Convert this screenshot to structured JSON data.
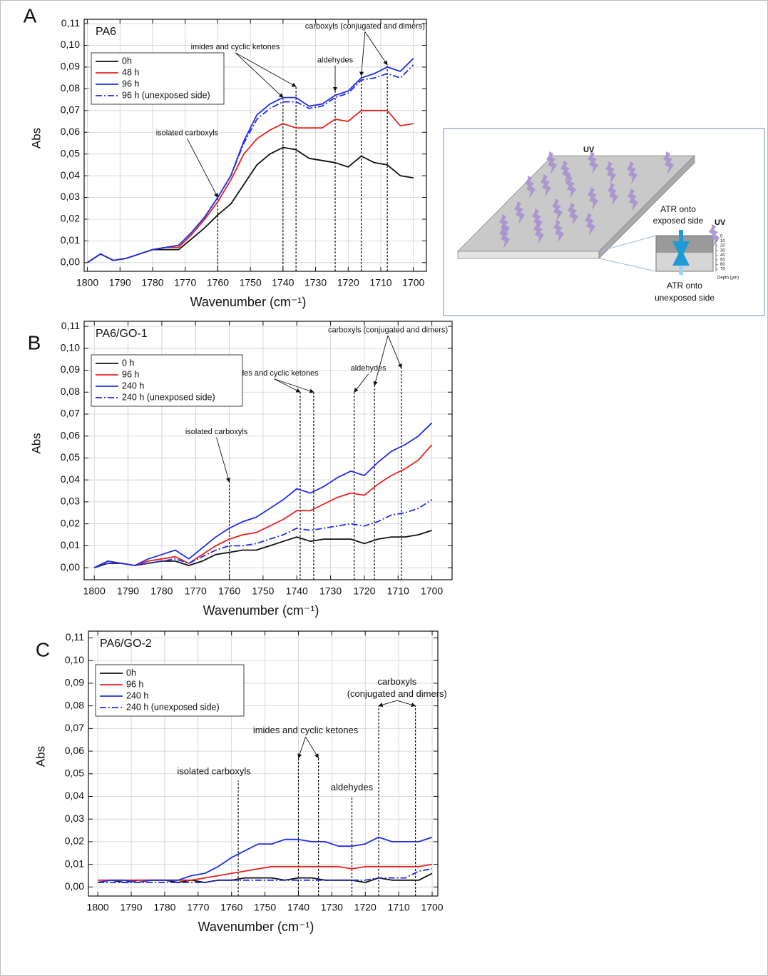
{
  "chart_data": [
    {
      "type": "line",
      "panel": "A",
      "title": "PA6",
      "xlabel": "Wavenumber (cm⁻¹)",
      "ylabel": "Abs",
      "xlim": [
        1801,
        1696
      ],
      "ylim": [
        -0.004,
        0.112
      ],
      "xticks": [
        1800,
        1790,
        1780,
        1770,
        1760,
        1750,
        1740,
        1730,
        1720,
        1710,
        1700
      ],
      "yticks": [
        {
          "value": 0,
          "label": "0,00"
        },
        {
          "value": 0.01,
          "label": "0,01"
        },
        {
          "value": 0.02,
          "label": "0,02"
        },
        {
          "value": 0.03,
          "label": "0,03"
        },
        {
          "value": 0.04,
          "label": "0,04"
        },
        {
          "value": 0.05,
          "label": "0,05"
        },
        {
          "value": 0.06,
          "label": "0,06"
        },
        {
          "value": 0.07,
          "label": "0,07"
        },
        {
          "value": 0.08,
          "label": "0,08"
        },
        {
          "value": 0.09,
          "label": "0,09"
        },
        {
          "value": 0.1,
          "label": "0,10"
        },
        {
          "value": 0.11,
          "label": "0,11"
        }
      ],
      "grid": true,
      "x": [
        1800,
        1796,
        1792,
        1788,
        1784,
        1780,
        1776,
        1772,
        1768,
        1764,
        1760,
        1756,
        1752,
        1748,
        1744,
        1740,
        1736,
        1732,
        1728,
        1724,
        1720,
        1716,
        1712,
        1708,
        1704,
        1700
      ],
      "series": [
        {
          "name": "0h",
          "color": "#111111",
          "linestyle": "solid",
          "values": [
            0.0,
            0.004,
            0.001,
            0.002,
            0.004,
            0.006,
            0.006,
            0.006,
            0.011,
            0.016,
            0.022,
            0.027,
            0.036,
            0.045,
            0.05,
            0.053,
            0.052,
            0.048,
            0.047,
            0.046,
            0.044,
            0.049,
            0.046,
            0.045,
            0.04,
            0.039
          ]
        },
        {
          "name": "48 h",
          "color": "#e8211e",
          "linestyle": "solid",
          "values": [
            0.0,
            0.004,
            0.001,
            0.002,
            0.004,
            0.006,
            0.007,
            0.007,
            0.013,
            0.02,
            0.028,
            0.038,
            0.05,
            0.057,
            0.061,
            0.064,
            0.062,
            0.062,
            0.062,
            0.066,
            0.065,
            0.07,
            0.07,
            0.07,
            0.063,
            0.064
          ]
        },
        {
          "name": "96 h",
          "color": "#1f2fe0",
          "linestyle": "solid",
          "values": [
            0.0,
            0.004,
            0.001,
            0.002,
            0.004,
            0.006,
            0.007,
            0.008,
            0.014,
            0.021,
            0.03,
            0.04,
            0.056,
            0.068,
            0.073,
            0.076,
            0.076,
            0.072,
            0.073,
            0.077,
            0.079,
            0.085,
            0.087,
            0.09,
            0.088,
            0.094
          ]
        },
        {
          "name": "96 h (unexposed side)",
          "color": "#1f2fe0",
          "linestyle": "dash-dot",
          "values": [
            0.0,
            0.004,
            0.001,
            0.002,
            0.004,
            0.006,
            0.007,
            0.008,
            0.014,
            0.021,
            0.03,
            0.04,
            0.055,
            0.066,
            0.071,
            0.074,
            0.074,
            0.071,
            0.072,
            0.076,
            0.078,
            0.084,
            0.085,
            0.087,
            0.085,
            0.091
          ]
        }
      ],
      "annotations": [
        {
          "text": [
            "isolated carboxyls"
          ],
          "x": [
            1760
          ],
          "y": [
            0.03
          ]
        },
        {
          "text": [
            "imides and cyclic ketones"
          ],
          "x": [
            1740,
            1736
          ],
          "y": [
            0.076,
            0.081
          ]
        },
        {
          "text": [
            "aldehydes"
          ],
          "x": [
            1724
          ],
          "y": [
            0.079
          ]
        },
        {
          "text": [
            "carboxyls (conjugated and dimers)"
          ],
          "x": [
            1716,
            1708
          ],
          "y": [
            0.086,
            0.091
          ]
        }
      ]
    },
    {
      "type": "line",
      "panel": "B",
      "title": "PA6/GO-1",
      "xlabel": "Wavenumber (cm⁻¹)",
      "ylabel": "Abs",
      "xlim": [
        1803,
        1694
      ],
      "ylim": [
        -0.0055,
        0.1123
      ],
      "xticks": [
        1800,
        1790,
        1780,
        1770,
        1760,
        1750,
        1740,
        1730,
        1720,
        1710,
        1700
      ],
      "yticks": [
        {
          "value": 0,
          "label": "0,00"
        },
        {
          "value": 0.01,
          "label": "0,01"
        },
        {
          "value": 0.02,
          "label": "0,02"
        },
        {
          "value": 0.03,
          "label": "0,03"
        },
        {
          "value": 0.04,
          "label": "0,04"
        },
        {
          "value": 0.05,
          "label": "0,05"
        },
        {
          "value": 0.06,
          "label": "0,06"
        },
        {
          "value": 0.07,
          "label": "0,07"
        },
        {
          "value": 0.08,
          "label": "0,08"
        },
        {
          "value": 0.09,
          "label": "0,09"
        },
        {
          "value": 0.1,
          "label": "0,10"
        },
        {
          "value": 0.11,
          "label": "0,11"
        }
      ],
      "grid": true,
      "x": [
        1800,
        1796,
        1792,
        1788,
        1784,
        1780,
        1776,
        1772,
        1768,
        1764,
        1760,
        1756,
        1752,
        1748,
        1744,
        1740,
        1736,
        1732,
        1728,
        1724,
        1720,
        1716,
        1712,
        1708,
        1704,
        1700
      ],
      "series": [
        {
          "name": "0 h",
          "color": "#111111",
          "linestyle": "solid",
          "values": [
            0.0,
            0.002,
            0.002,
            0.001,
            0.002,
            0.003,
            0.003,
            0.001,
            0.003,
            0.006,
            0.007,
            0.008,
            0.008,
            0.01,
            0.012,
            0.014,
            0.012,
            0.013,
            0.013,
            0.013,
            0.011,
            0.013,
            0.014,
            0.014,
            0.015,
            0.017
          ]
        },
        {
          "name": "96 h",
          "color": "#e8211e",
          "linestyle": "solid",
          "values": [
            0.0,
            0.003,
            0.002,
            0.001,
            0.003,
            0.004,
            0.005,
            0.002,
            0.006,
            0.01,
            0.013,
            0.015,
            0.016,
            0.019,
            0.022,
            0.026,
            0.026,
            0.029,
            0.032,
            0.034,
            0.033,
            0.038,
            0.042,
            0.045,
            0.049,
            0.056
          ]
        },
        {
          "name": "240 h",
          "color": "#1f2fe0",
          "linestyle": "solid",
          "values": [
            0.0,
            0.003,
            0.002,
            0.001,
            0.004,
            0.006,
            0.008,
            0.004,
            0.009,
            0.014,
            0.018,
            0.021,
            0.023,
            0.027,
            0.031,
            0.036,
            0.034,
            0.037,
            0.041,
            0.044,
            0.042,
            0.048,
            0.053,
            0.056,
            0.06,
            0.066
          ]
        },
        {
          "name": "240 h (unexposed side)",
          "color": "#1f2fe0",
          "linestyle": "dash-dot",
          "values": [
            0.0,
            0.002,
            0.002,
            0.001,
            0.002,
            0.003,
            0.004,
            0.002,
            0.005,
            0.008,
            0.01,
            0.01,
            0.011,
            0.013,
            0.015,
            0.018,
            0.017,
            0.018,
            0.019,
            0.02,
            0.019,
            0.021,
            0.024,
            0.025,
            0.027,
            0.031
          ]
        }
      ],
      "annotations": [
        {
          "text": [
            "isolated carboxyls"
          ],
          "x": [
            1760
          ],
          "y": [
            0.039
          ]
        },
        {
          "text": [
            "imides and cyclic ketones"
          ],
          "x": [
            1739,
            1735
          ],
          "y": [
            0.08,
            0.08
          ]
        },
        {
          "text": [
            "aldehydes"
          ],
          "x": [
            1723
          ],
          "y": [
            0.08
          ]
        },
        {
          "text": [
            "carboxyls (conjugated and dimers)"
          ],
          "x": [
            1717,
            1709
          ],
          "y": [
            0.083,
            0.091
          ]
        }
      ]
    },
    {
      "type": "line",
      "panel": "C",
      "title": "PA6/GO-2",
      "xlabel": "Wavenumber (cm⁻¹)",
      "ylabel": "Abs",
      "xlim": [
        1802.8,
        1698.3
      ],
      "ylim": [
        -0.004,
        0.113
      ],
      "xticks": [
        1800,
        1790,
        1780,
        1770,
        1760,
        1750,
        1740,
        1730,
        1720,
        1710,
        1700
      ],
      "yticks": [
        {
          "value": 0,
          "label": "0,00"
        },
        {
          "value": 0.01,
          "label": "0,01"
        },
        {
          "value": 0.02,
          "label": "0,02"
        },
        {
          "value": 0.03,
          "label": "0,03"
        },
        {
          "value": 0.04,
          "label": "0,04"
        },
        {
          "value": 0.05,
          "label": "0,05"
        },
        {
          "value": 0.06,
          "label": "0,06"
        },
        {
          "value": 0.07,
          "label": "0,07"
        },
        {
          "value": 0.08,
          "label": "0,08"
        },
        {
          "value": 0.09,
          "label": "0,09"
        },
        {
          "value": 0.1,
          "label": "0,10"
        },
        {
          "value": 0.11,
          "label": "0,11"
        }
      ],
      "grid": true,
      "x": [
        1800,
        1796,
        1792,
        1788,
        1784,
        1780,
        1776,
        1772,
        1768,
        1764,
        1760,
        1756,
        1752,
        1748,
        1744,
        1740,
        1736,
        1732,
        1728,
        1724,
        1720,
        1716,
        1712,
        1708,
        1704,
        1700
      ],
      "series": [
        {
          "name": "0h",
          "color": "#111111",
          "linestyle": "solid",
          "values": [
            0.002,
            0.003,
            0.002,
            0.003,
            0.003,
            0.003,
            0.002,
            0.003,
            0.002,
            0.003,
            0.003,
            0.004,
            0.004,
            0.004,
            0.003,
            0.004,
            0.004,
            0.003,
            0.003,
            0.003,
            0.002,
            0.004,
            0.003,
            0.003,
            0.003,
            0.006
          ]
        },
        {
          "name": "96 h",
          "color": "#e8211e",
          "linestyle": "solid",
          "values": [
            0.003,
            0.003,
            0.003,
            0.003,
            0.003,
            0.003,
            0.003,
            0.003,
            0.004,
            0.005,
            0.006,
            0.007,
            0.008,
            0.009,
            0.009,
            0.009,
            0.009,
            0.009,
            0.009,
            0.008,
            0.009,
            0.009,
            0.009,
            0.009,
            0.009,
            0.01
          ]
        },
        {
          "name": "240 h",
          "color": "#1f2fe0",
          "linestyle": "solid",
          "values": [
            0.002,
            0.003,
            0.003,
            0.002,
            0.003,
            0.003,
            0.003,
            0.005,
            0.006,
            0.009,
            0.013,
            0.016,
            0.019,
            0.019,
            0.021,
            0.021,
            0.02,
            0.02,
            0.018,
            0.018,
            0.019,
            0.022,
            0.02,
            0.02,
            0.02,
            0.022
          ]
        },
        {
          "name": "240 h (unexposed side)",
          "color": "#1f2fe0",
          "linestyle": "dash-dot",
          "values": [
            0.002,
            0.002,
            0.002,
            0.002,
            0.002,
            0.002,
            0.002,
            0.002,
            0.002,
            0.003,
            0.003,
            0.003,
            0.003,
            0.003,
            0.003,
            0.003,
            0.003,
            0.003,
            0.003,
            0.003,
            0.003,
            0.004,
            0.004,
            0.004,
            0.007,
            0.008
          ]
        }
      ],
      "annotations": [
        {
          "text": [
            "isolated carboxyls"
          ],
          "x": [
            1758
          ],
          "y": [
            0.047
          ]
        },
        {
          "text": [
            "imides and cyclic ketones"
          ],
          "x": [
            1740,
            1734
          ],
          "y": [
            0.057,
            0.057
          ]
        },
        {
          "text": [
            "aldehydes"
          ],
          "x": [
            1724
          ],
          "y": [
            0.04
          ]
        },
        {
          "text": [
            "carboxyls",
            "(conjugated and dimers)"
          ],
          "x": [
            1716,
            1705
          ],
          "y": [
            0.08,
            0.08
          ]
        }
      ]
    }
  ],
  "diagram": {
    "uv_labels": [
      "UV",
      "UV"
    ],
    "exposed_label": [
      "ATR onto",
      "exposed side"
    ],
    "unexposed_label": [
      "ATR onto",
      "unexposed side"
    ],
    "depth_ticks": [
      0,
      10,
      20,
      30,
      40,
      50,
      60,
      70
    ],
    "depth_label": "Depth (μm)"
  }
}
